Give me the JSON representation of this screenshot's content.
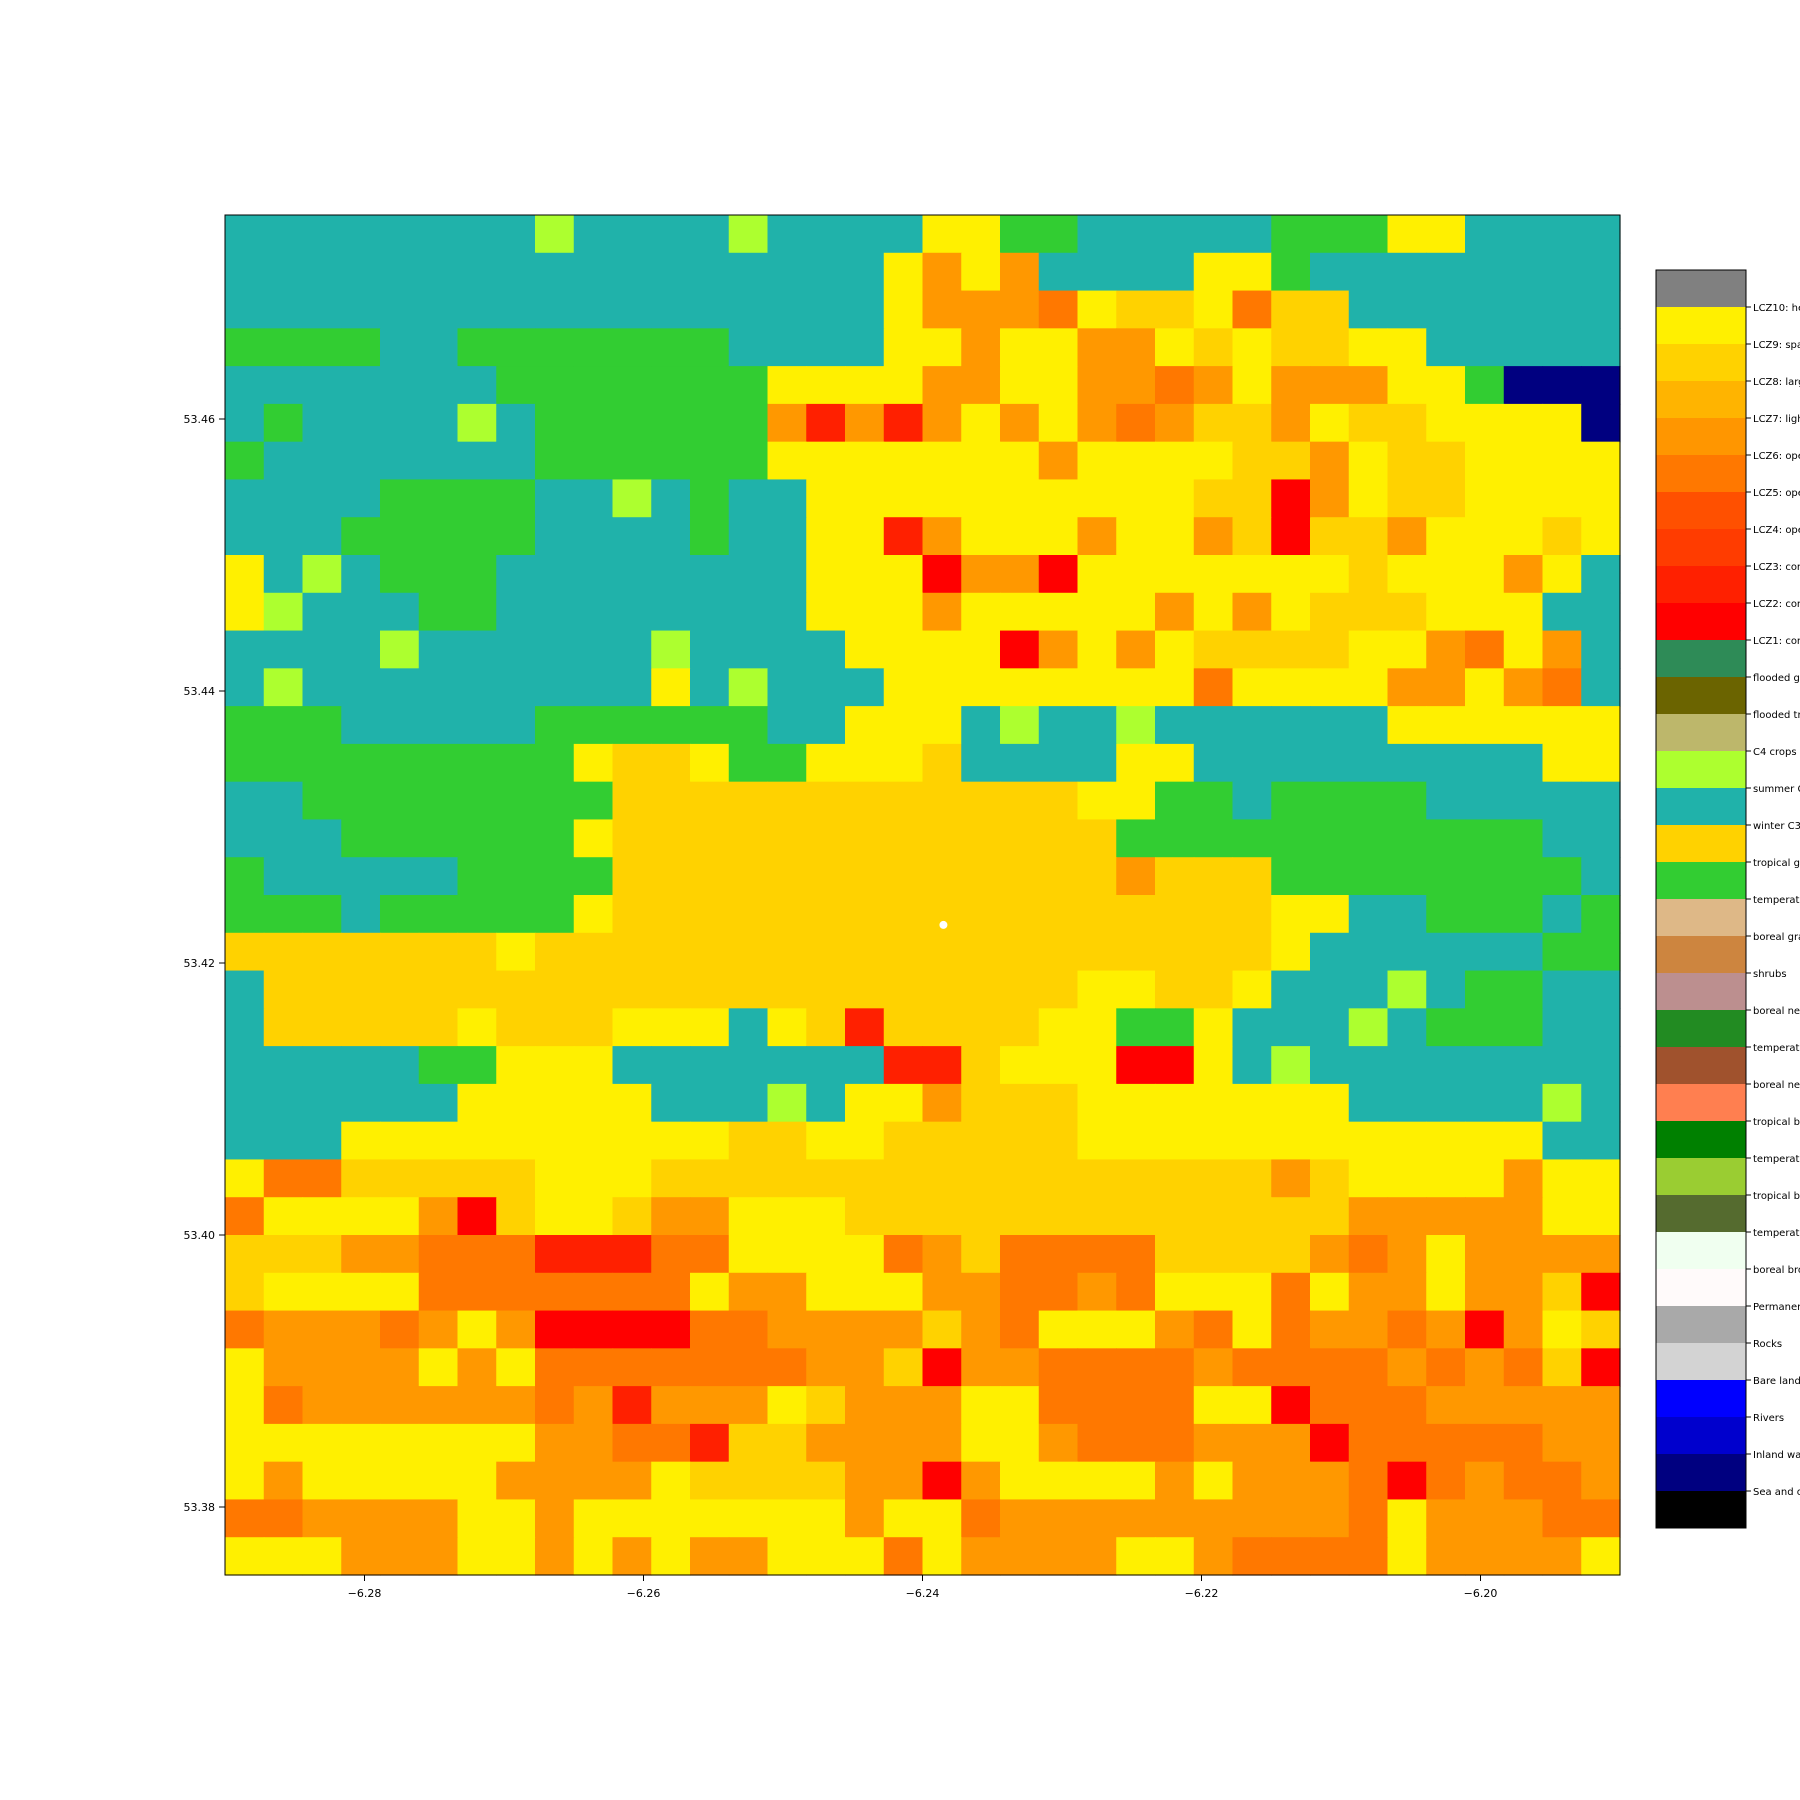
{
  "chart_data": {
    "type": "heatmap",
    "title": "",
    "xlabel": "",
    "ylabel": "",
    "xlim": [
      -6.29,
      -6.19
    ],
    "ylim": [
      53.375,
      53.475
    ],
    "grid": [
      "TTTTTTTTLTTTTLTTTTYYGGTTTTTGGGYYTTTT",
      "TTTTTTTTTTTTTTTTTYOYOTTTTYYGTTTTTTTT",
      "TTTTTTTTTTTTTTTTTYOOOPYDDYPDDTTTTTTT",
      "GGGGTTGGGGGGGTTTTYYOYYOOYDYDDYYTTTTT",
      "TTTTTTTGGGGGGGYYYYOOYYOOPOYOOOYYGNNN",
      "TGTTTTLTGGGGGGOROROYOYOPODDOYDDYYYYN",
      "GTTTTTTTGGGGGGYYYYYYYOYYYYDDOYDDYYYY",
      "TTTTGGGGTTLTGTTYYYYYYYYYYDDXOYDDYYYY",
      "TTTGGGGGTTTTGTTYYROYYYOYYODXDDOYYYDY",
      "YTLTGGGTTTTTTTTYYYXOOXYYYYYYYDYYYOYT",
      "YLTTTGGTTTTTTTTYYYOYYYYYOYOYDDDYYYTT",
      "TTTTLTTTTTTLTTTTYYYYXOYOYDDDDYYOPYOT",
      "TLTTTTTTTTTYTLTTTYYYYYYYYPYYYYOOYOPT",
      "GGGTTTTTGGGGGGTTYYYTLTTLTTTTTTYYYYYY",
      "GGGGGGGGGYDDYGGYYYDTTTTYYTTTTTTTTTYY",
      "TTGGGGGGGGDDDDDDDDDDDDYYGGTGGGGTTTTT",
      "TTTGGGGGGYDDDDDDDDDDDDDGGGGGGGGGGGTT",
      "GTTTTTGGGGDDDDDDDDDDDDDODDDGGGGGGGGT",
      "GGGTGGGGGYDDDDDDDDDDDDDDDDDYYTTGGGTG",
      "DDDDDDDYDDDDDDDDDDDDDDDDDDDYTTTTTTGG",
      "TDDDDDDDDDDDDDDDDDDDDDYYDDYTTTLTGGTT",
      "TDDDDDYDDDYYYTYDRDDDDYYGGYTTTLTGGGTT",
      "TTTTTGGYYYTTTTTTTRRDYYYXXYTLTTTTTTTT",
      "TTTTTTYYYYYTTTLTYYODDDYYYYYYYTTTTTLT",
      "TTTYYYYYYYYYYDDYYDDDDDYYYYYYYYYYYYTT",
      "YPPDDDDDYYYDDDDDDDDDDDDDDDDODYYYYOYY",
      "PYYYYOXDYYDOOYYYDDDDDDDDDDDDDOOOOOYY",
      "DDDOOPPPRRRPPYYYYPODPPPPDDDDOPOYOOOO",
      "DYYYYPPPPPPPYOOYYYOOPPOPYYYPYOOYOODX",
      "POOOPOYOXXXXPPOOOODOPYYYOPYPOOPOXOYD",
      "YOOOOYOYPPPPPPPOODXOOPPPPOPPPPOPOPDX",
      "YPOOOOOOPOROOOYDOOOYYPPPPYYXPPPOOOOO",
      "YYYYYYYYOOPPRDDOOOOYYOPPPOOOXPPPPPOO",
      "YOYYYYYOOOOYDDDDOOXOYYYYOYOOOPXPOPPO",
      "PPOOOOYYOYYYYYYYOYYPOOOOOOOOOPYOOOPP",
      "YYYOOOYYOYOYOOYYYPYOOOOYYOPPPPYOOOOY"
    ],
    "x_ticks": [
      {
        "value": -6.28,
        "label": "−6.28"
      },
      {
        "value": -6.26,
        "label": "−6.26"
      },
      {
        "value": -6.24,
        "label": "−6.24"
      },
      {
        "value": -6.22,
        "label": "−6.22"
      },
      {
        "value": -6.2,
        "label": "−6.20"
      }
    ],
    "y_ticks": [
      {
        "value": 53.38,
        "label": "53.38"
      },
      {
        "value": 53.4,
        "label": "53.40"
      },
      {
        "value": 53.42,
        "label": "53.42"
      },
      {
        "value": 53.44,
        "label": "53.44"
      },
      {
        "value": 53.46,
        "label": "53.46"
      }
    ],
    "grid_rows": 36,
    "grid_cols": 36,
    "marker": {
      "x": -6.2385,
      "y": 53.4228,
      "color": "#ffffff"
    },
    "palette": {
      "T": "#20b2aa",
      "G": "#32cd32",
      "L": "#adff2f",
      "Y": "#fff000",
      "D": "#ffd200",
      "O": "#ff9800",
      "P": "#ff7800",
      "R": "#ff2000",
      "X": "#ff0000",
      "N": "#000080"
    }
  },
  "legend": {
    "items": [
      {
        "label": "LCZ10: he",
        "color": "#808080"
      },
      {
        "label": "LCZ9: spa",
        "color": "#fff000"
      },
      {
        "label": "LCZ8: larg",
        "color": "#ffd200"
      },
      {
        "label": "LCZ7: ligh",
        "color": "#ffb400"
      },
      {
        "label": "LCZ6: ope",
        "color": "#ff9600"
      },
      {
        "label": "LCZ5: ope",
        "color": "#ff7800"
      },
      {
        "label": "LCZ4: ope",
        "color": "#ff5000"
      },
      {
        "label": "LCZ3: con",
        "color": "#ff3c00"
      },
      {
        "label": "LCZ2: con",
        "color": "#ff2000"
      },
      {
        "label": "LCZ1: con",
        "color": "#ff0000"
      },
      {
        "label": "flooded g",
        "color": "#2e8b57"
      },
      {
        "label": "flooded tr",
        "color": "#6b6400"
      },
      {
        "label": "C4 crops",
        "color": "#bdb76b"
      },
      {
        "label": "summer C",
        "color": "#adff2f"
      },
      {
        "label": "winter C3",
        "color": "#20b2aa"
      },
      {
        "label": "tropical g",
        "color": "#ffd200"
      },
      {
        "label": "temperate",
        "color": "#32cd32"
      },
      {
        "label": "boreal gra",
        "color": "#deb887"
      },
      {
        "label": "shrubs",
        "color": "#cd853f"
      },
      {
        "label": "boreal ne",
        "color": "#bc8f8f"
      },
      {
        "label": "temperate",
        "color": "#228b22"
      },
      {
        "label": "boreal ne",
        "color": "#a0522d"
      },
      {
        "label": "tropical b",
        "color": "#ff7f50"
      },
      {
        "label": "temperate",
        "color": "#008000"
      },
      {
        "label": "tropical b",
        "color": "#9acd32"
      },
      {
        "label": "temperate",
        "color": "#556b2f"
      },
      {
        "label": "boreal bro",
        "color": "#f0fff0"
      },
      {
        "label": "Permaner",
        "color": "#fffafa"
      },
      {
        "label": "Rocks",
        "color": "#a9a9a9"
      },
      {
        "label": "Bare land",
        "color": "#d3d3d3"
      },
      {
        "label": "Rivers",
        "color": "#0000ff"
      },
      {
        "label": "Inland wa",
        "color": "#0000cd"
      },
      {
        "label": "Sea and o",
        "color": "#000080"
      }
    ],
    "bottom_color": "#000000"
  }
}
